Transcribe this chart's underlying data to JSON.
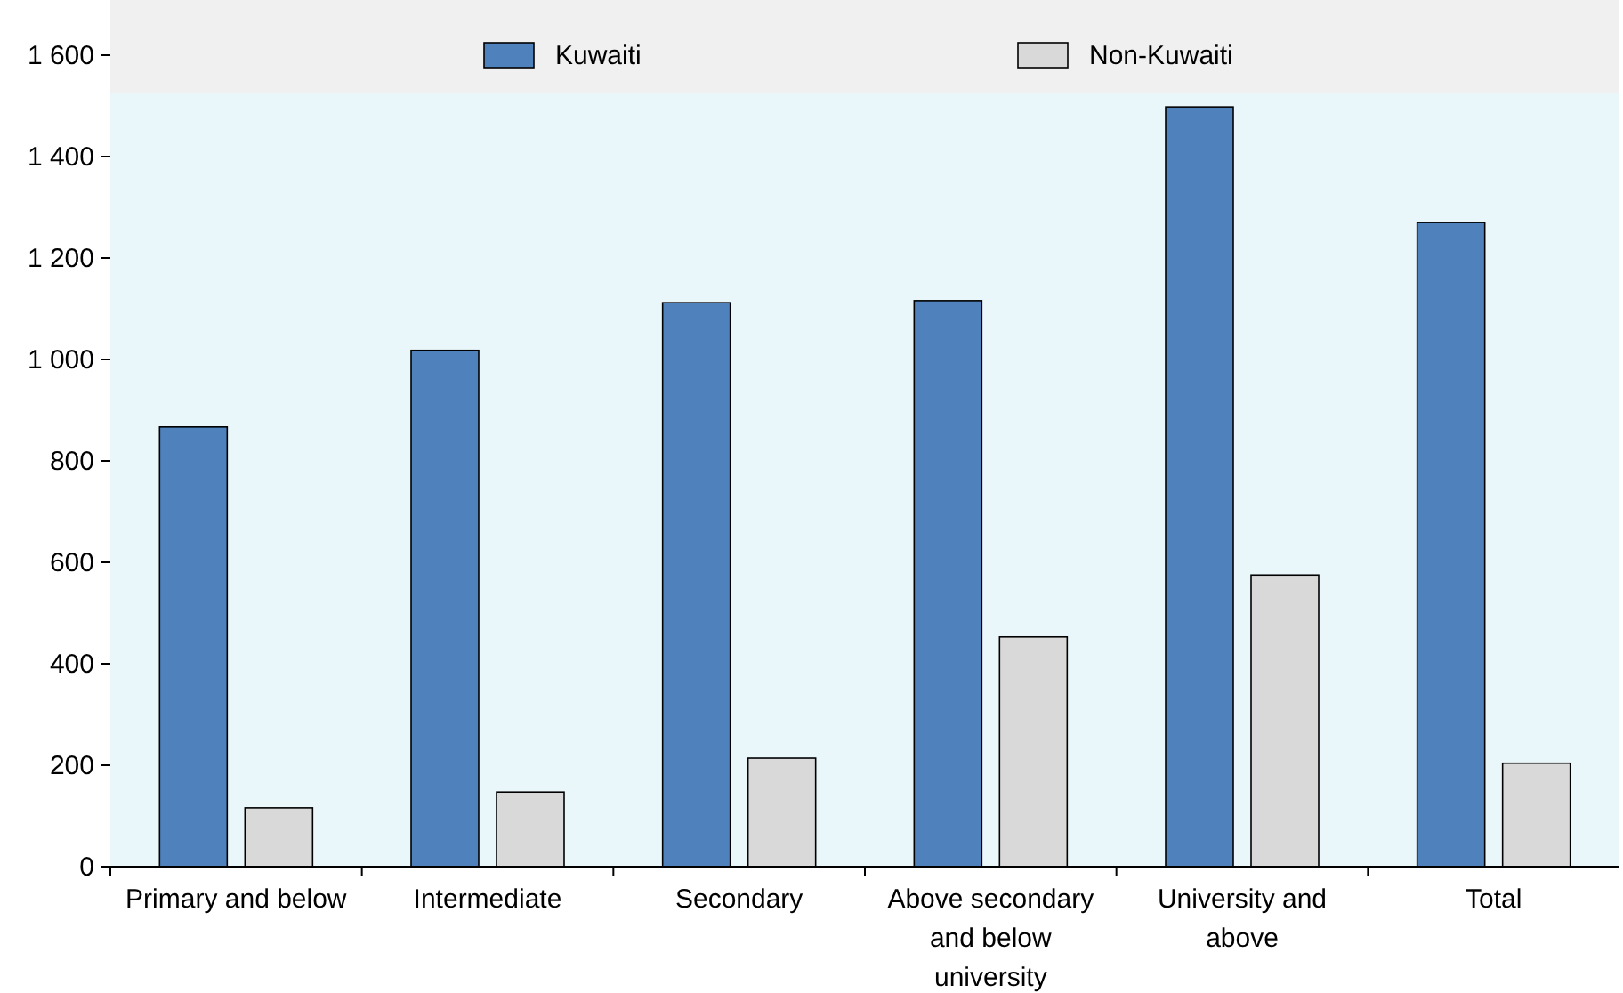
{
  "chart_data": {
    "type": "bar",
    "categories": [
      "Primary and below",
      "Intermediate",
      "Secondary",
      "Above secondary and below university",
      "University and above",
      "Total"
    ],
    "series": [
      {
        "name": "Kuwaiti",
        "color": "#4f81bd",
        "values": [
          867,
          1018,
          1112,
          1116,
          1498,
          1270
        ]
      },
      {
        "name": "Non-Kuwaiti",
        "color": "#d9d9d9",
        "values": [
          116,
          147,
          214,
          453,
          575,
          204
        ]
      }
    ],
    "ylim": [
      0,
      1600
    ],
    "yticks": [
      0,
      200,
      400,
      600,
      800,
      {
        "value": 1000,
        "label": "1 000"
      },
      {
        "value": 1200,
        "label": "1 200"
      },
      {
        "value": 1400,
        "label": "1 400"
      },
      {
        "value": 1600,
        "label": "1 600"
      }
    ],
    "grid": false,
    "legend": "top"
  }
}
